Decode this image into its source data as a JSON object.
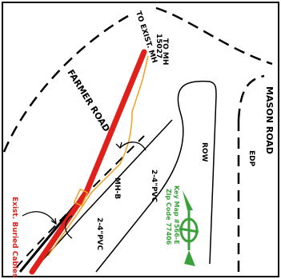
{
  "labels": {
    "to_exist_mh": "TO EXIST. MH",
    "to_mh_1": "TO MH",
    "to_mh_2": "15027",
    "farmer_road": "FARMER ROAD",
    "mason_road": "MASON ROAD",
    "edp": "EDP",
    "row": "ROW",
    "mh_b": "MH-B",
    "pvc_upper": "2-4\"PVC",
    "pvc_lower": "2-4\"PVC",
    "exist_buried_cables": "Exist. Buried Cables",
    "key_map": "Key Map #566-E",
    "zip_code": "Zip Code  77406"
  },
  "colors": {
    "sewer_line": "#e0201a",
    "cable_line": "#f0a020",
    "key_map_text": "#3aa13a",
    "north_arrow": "#3aa13a",
    "linework": "#000000"
  },
  "icons": {
    "north_arrow": "north-arrow-icon"
  }
}
